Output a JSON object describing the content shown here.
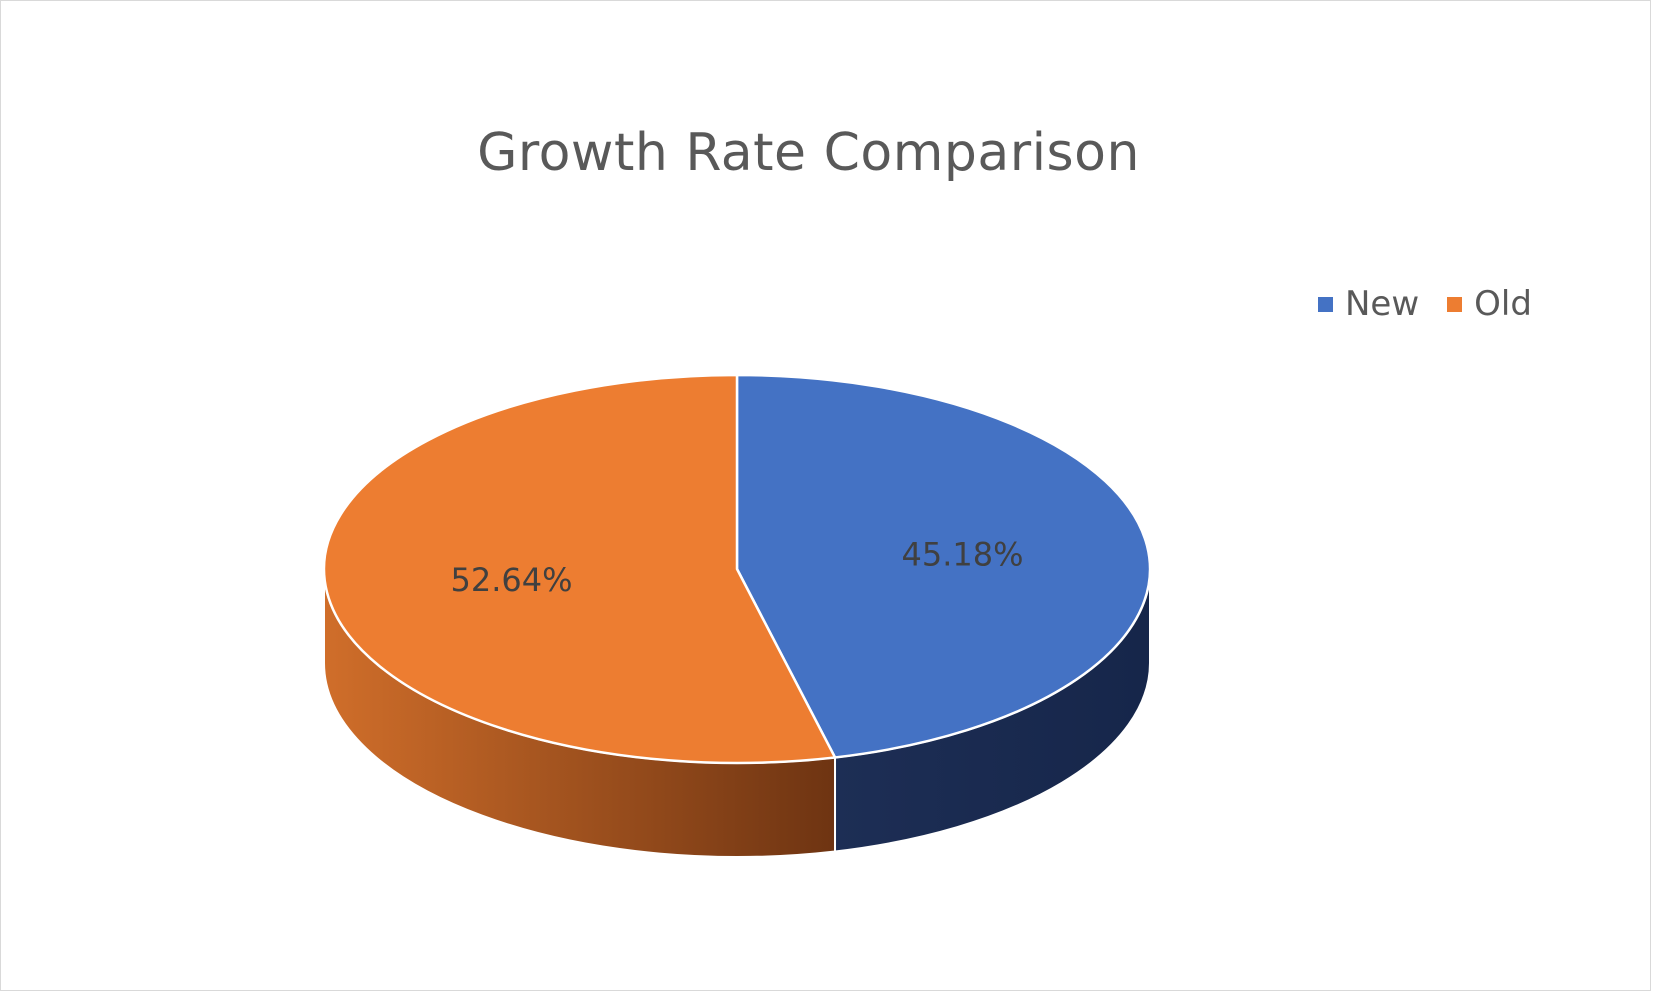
{
  "chart_data": {
    "type": "pie",
    "style": "3d",
    "title": "Growth Rate Comparison",
    "categories": [
      "New",
      "Old"
    ],
    "values": [
      45.18,
      52.64
    ],
    "labels": [
      "45.18%",
      "52.64%"
    ],
    "colors": [
      "#4472C4",
      "#ED7D31"
    ],
    "side_colors": [
      "#1B2A4E",
      "#7A3A14"
    ],
    "legend": {
      "position": "top-right",
      "items": [
        {
          "name": "New",
          "color": "#4472C4"
        },
        {
          "name": "Old",
          "color": "#ED7D31"
        }
      ]
    }
  }
}
